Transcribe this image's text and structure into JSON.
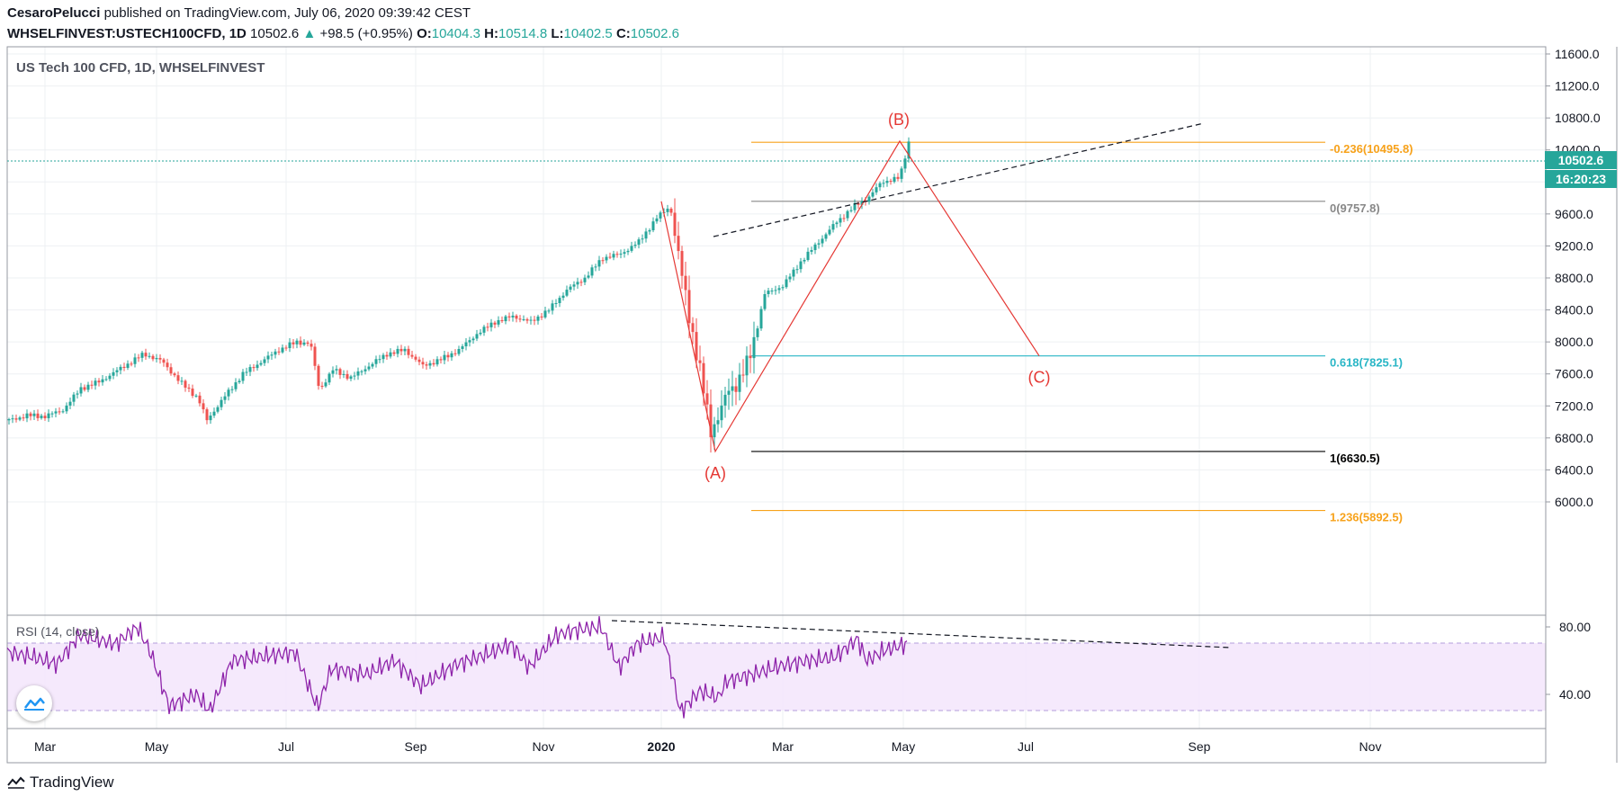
{
  "header": {
    "author": "CesaroPelucci",
    "published_text": "published on TradingView.com, July 06, 2020 09:39:42 CEST",
    "symbol": "WHSELFINVEST:USTECH100CFD, 1D",
    "last": "10502.6",
    "change_arrow": "▲",
    "change": "+98.5 (+0.95%)",
    "o_label": "O:",
    "o": "10404.3",
    "h_label": "H:",
    "h": "10514.8",
    "l_label": "L:",
    "l": "10402.5",
    "c_label": "C:",
    "c": "10502.6"
  },
  "chart_title": "US Tech 100 CFD, 1D, WHSELFINVEST",
  "rsi_title": "RSI (14, close)",
  "price_tag": "10502.6",
  "countdown_tag": "16:20:23",
  "brand": "TradingView",
  "colors": {
    "up": "#26a69a",
    "down": "#ef5350",
    "fib_orange": "#f7a21b",
    "fib_teal": "#29b6c6",
    "wave_red": "#e53935",
    "rsi_line": "#8e24aa",
    "rsi_band": "#f3e5fc"
  },
  "chart_data": {
    "type": "candlestick",
    "price_axis": {
      "ticks": [
        "11600.0",
        "11200.0",
        "10800.0",
        "10400.0",
        "10000.0",
        "9600.0",
        "9200.0",
        "8800.0",
        "8400.0",
        "8000.0",
        "7600.0",
        "7200.0",
        "6800.0",
        "6400.0",
        "6000.0"
      ],
      "range": [
        5700,
        11800
      ]
    },
    "rsi_axis": {
      "ticks": [
        "80.00",
        "40.00"
      ],
      "band": [
        30,
        70
      ]
    },
    "time_axis": [
      "Mar",
      "May",
      "Jul",
      "Sep",
      "Nov",
      "2020",
      "Mar",
      "May",
      "Jul",
      "Sep",
      "Nov"
    ],
    "fib_levels": [
      {
        "label": "-0.236(10495.8)",
        "value": 10495.8,
        "color": "#f7a21b"
      },
      {
        "label": "0(9757.8)",
        "value": 9757.8,
        "color": "#888888"
      },
      {
        "label": "0.618(7825.1)",
        "value": 7825.1,
        "color": "#29b6c6"
      },
      {
        "label": "1(6630.5)",
        "value": 6630.5,
        "color": "#000000"
      },
      {
        "label": "1.236(5892.5)",
        "value": 5892.5,
        "color": "#f7a21b"
      }
    ],
    "wave_labels": [
      {
        "label": "(A)",
        "value": 6630.5
      },
      {
        "label": "(B)",
        "value": 10510
      },
      {
        "label": "(C)",
        "value": 7825.1
      }
    ],
    "price_path": [
      [
        0,
        7020
      ],
      [
        20,
        7080
      ],
      [
        40,
        7070
      ],
      [
        60,
        7150
      ],
      [
        80,
        7420
      ],
      [
        100,
        7500
      ],
      [
        120,
        7640
      ],
      [
        150,
        7850
      ],
      [
        170,
        7760
      ],
      [
        190,
        7500
      ],
      [
        210,
        7300
      ],
      [
        220,
        7020
      ],
      [
        240,
        7320
      ],
      [
        260,
        7600
      ],
      [
        280,
        7750
      ],
      [
        300,
        7900
      ],
      [
        320,
        8000
      ],
      [
        335,
        7980
      ],
      [
        345,
        7400
      ],
      [
        360,
        7650
      ],
      [
        380,
        7550
      ],
      [
        400,
        7700
      ],
      [
        420,
        7850
      ],
      [
        440,
        7900
      ],
      [
        460,
        7700
      ],
      [
        480,
        7780
      ],
      [
        500,
        7900
      ],
      [
        520,
        8100
      ],
      [
        540,
        8250
      ],
      [
        560,
        8320
      ],
      [
        580,
        8250
      ],
      [
        600,
        8400
      ],
      [
        620,
        8650
      ],
      [
        640,
        8800
      ],
      [
        660,
        9050
      ],
      [
        680,
        9100
      ],
      [
        700,
        9250
      ],
      [
        720,
        9550
      ],
      [
        735,
        9700
      ],
      [
        745,
        9000
      ],
      [
        755,
        8400
      ],
      [
        770,
        7500
      ],
      [
        780,
        6900
      ],
      [
        790,
        7100
      ],
      [
        800,
        7400
      ],
      [
        810,
        7500
      ],
      [
        820,
        7700
      ],
      [
        830,
        8100
      ],
      [
        840,
        8600
      ],
      [
        860,
        8700
      ],
      [
        880,
        9000
      ],
      [
        900,
        9250
      ],
      [
        920,
        9500
      ],
      [
        940,
        9700
      ],
      [
        955,
        9800
      ],
      [
        970,
        10000
      ],
      [
        990,
        10050
      ],
      [
        1000,
        10500
      ]
    ],
    "rsi_path": [
      [
        0,
        65
      ],
      [
        30,
        62
      ],
      [
        55,
        58
      ],
      [
        80,
        75
      ],
      [
        120,
        70
      ],
      [
        145,
        80
      ],
      [
        160,
        64
      ],
      [
        180,
        33
      ],
      [
        210,
        40
      ],
      [
        225,
        30
      ],
      [
        250,
        60
      ],
      [
        280,
        62
      ],
      [
        320,
        65
      ],
      [
        345,
        32
      ],
      [
        360,
        55
      ],
      [
        400,
        52
      ],
      [
        430,
        60
      ],
      [
        460,
        45
      ],
      [
        500,
        58
      ],
      [
        540,
        65
      ],
      [
        560,
        70
      ],
      [
        580,
        56
      ],
      [
        610,
        75
      ],
      [
        630,
        78
      ],
      [
        660,
        80
      ],
      [
        680,
        56
      ],
      [
        700,
        70
      ],
      [
        730,
        74
      ],
      [
        748,
        30
      ],
      [
        770,
        42
      ],
      [
        790,
        38
      ],
      [
        800,
        48
      ],
      [
        830,
        52
      ],
      [
        860,
        57
      ],
      [
        890,
        60
      ],
      [
        920,
        62
      ],
      [
        945,
        73
      ],
      [
        955,
        60
      ],
      [
        975,
        66
      ],
      [
        1000,
        70
      ]
    ]
  }
}
